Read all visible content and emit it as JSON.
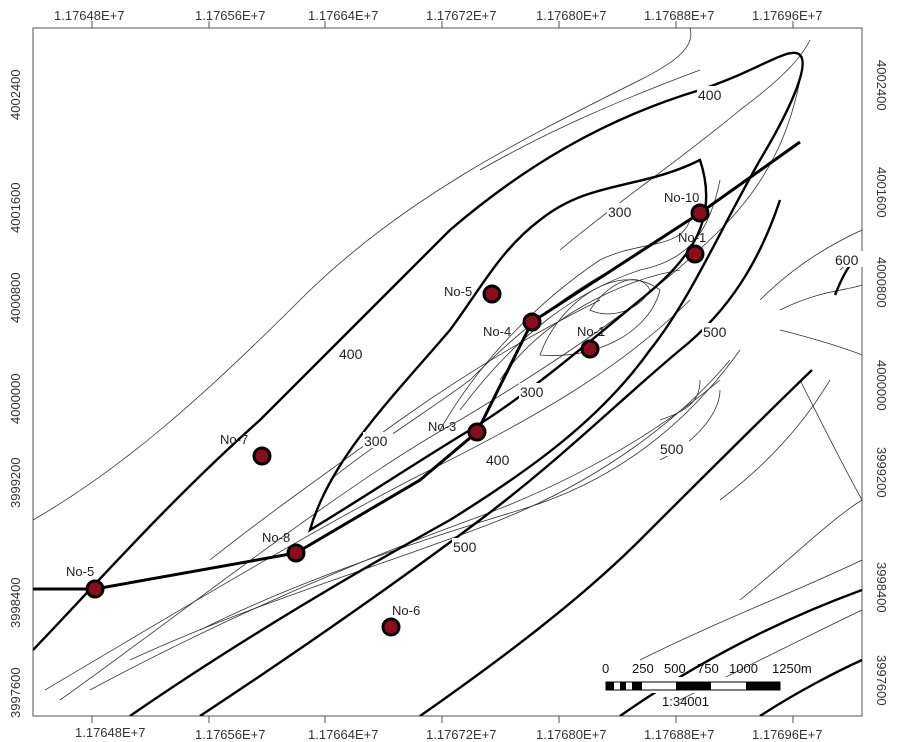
{
  "axes": {
    "x_ticks": [
      "1.17648E+7",
      "1.17656E+7",
      "1.17664E+7",
      "1.17672E+7",
      "1.17680E+7",
      "1.17688E+7",
      "1.17696E+7"
    ],
    "y_ticks": [
      "3997600",
      "3998400",
      "3999200",
      "4000000",
      "4000800",
      "4001600",
      "4002400"
    ]
  },
  "contour_labels": [
    "400",
    "300",
    "600",
    "500",
    "400",
    "300",
    "300",
    "400",
    "500",
    "500"
  ],
  "wells": [
    {
      "name": "No-10"
    },
    {
      "name": "No-1"
    },
    {
      "name": "No-5"
    },
    {
      "name": "No-4"
    },
    {
      "name": "No-1"
    },
    {
      "name": "No-3"
    },
    {
      "name": "No-7"
    },
    {
      "name": "No-8"
    },
    {
      "name": "No-5"
    },
    {
      "name": "No-6"
    }
  ],
  "scale_bar": {
    "ticks": [
      "0",
      "250",
      "500",
      "750",
      "1000",
      "1250m"
    ],
    "ratio": "1:34001"
  },
  "colors": {
    "well_fill": "#8b0c1a",
    "line": "#000000"
  }
}
